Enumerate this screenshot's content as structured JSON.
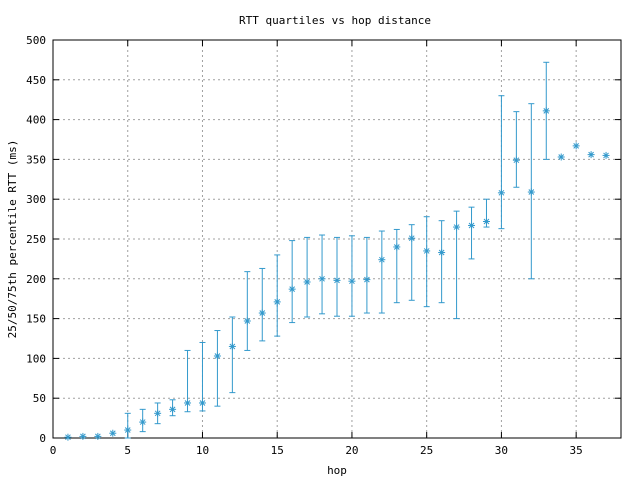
{
  "chart_data": {
    "type": "scatter",
    "title": "RTT quartiles vs hop distance",
    "xlabel": "hop",
    "ylabel": "25/50/75th percentile RTT (ms)",
    "xlim": [
      0,
      38
    ],
    "ylim": [
      0,
      500
    ],
    "xticks": [
      "0",
      "5",
      "10",
      "15",
      "20",
      "25",
      "30",
      "35"
    ],
    "yticks": [
      "0",
      "50",
      "100",
      "150",
      "200",
      "250",
      "300",
      "350",
      "400",
      "450",
      "500"
    ],
    "grid": true,
    "color": "#3399cc",
    "series": [
      {
        "points": [
          {
            "x": 1,
            "median": 1,
            "q25": 1,
            "q75": 1
          },
          {
            "x": 2,
            "median": 2,
            "q25": 2,
            "q75": 2
          },
          {
            "x": 3,
            "median": 2,
            "q25": 2,
            "q75": 2
          },
          {
            "x": 4,
            "median": 6,
            "q25": 6,
            "q75": 6
          },
          {
            "x": 5,
            "median": 10,
            "q25": 0,
            "q75": 31
          },
          {
            "x": 6,
            "median": 20,
            "q25": 8,
            "q75": 36
          },
          {
            "x": 7,
            "median": 31,
            "q25": 18,
            "q75": 44
          },
          {
            "x": 8,
            "median": 36,
            "q25": 28,
            "q75": 48
          },
          {
            "x": 9,
            "median": 44,
            "q25": 33,
            "q75": 110
          },
          {
            "x": 10,
            "median": 44,
            "q25": 34,
            "q75": 120
          },
          {
            "x": 11,
            "median": 103,
            "q25": 40,
            "q75": 135
          },
          {
            "x": 12,
            "median": 115,
            "q25": 57,
            "q75": 152
          },
          {
            "x": 13,
            "median": 147,
            "q25": 110,
            "q75": 209
          },
          {
            "x": 14,
            "median": 157,
            "q25": 122,
            "q75": 213
          },
          {
            "x": 15,
            "median": 171,
            "q25": 128,
            "q75": 230
          },
          {
            "x": 16,
            "median": 187,
            "q25": 145,
            "q75": 248
          },
          {
            "x": 17,
            "median": 196,
            "q25": 152,
            "q75": 252
          },
          {
            "x": 18,
            "median": 200,
            "q25": 156,
            "q75": 255
          },
          {
            "x": 19,
            "median": 198,
            "q25": 153,
            "q75": 252
          },
          {
            "x": 20,
            "median": 197,
            "q25": 153,
            "q75": 254
          },
          {
            "x": 21,
            "median": 199,
            "q25": 157,
            "q75": 252
          },
          {
            "x": 22,
            "median": 224,
            "q25": 157,
            "q75": 260
          },
          {
            "x": 23,
            "median": 240,
            "q25": 170,
            "q75": 262
          },
          {
            "x": 24,
            "median": 251,
            "q25": 173,
            "q75": 268
          },
          {
            "x": 25,
            "median": 235,
            "q25": 165,
            "q75": 278
          },
          {
            "x": 26,
            "median": 233,
            "q25": 170,
            "q75": 273
          },
          {
            "x": 27,
            "median": 265,
            "q25": 150,
            "q75": 285
          },
          {
            "x": 28,
            "median": 267,
            "q25": 225,
            "q75": 290
          },
          {
            "x": 29,
            "median": 272,
            "q25": 265,
            "q75": 300
          },
          {
            "x": 30,
            "median": 308,
            "q25": 263,
            "q75": 430
          },
          {
            "x": 31,
            "median": 349,
            "q25": 315,
            "q75": 410
          },
          {
            "x": 32,
            "median": 309,
            "q25": 200,
            "q75": 420
          },
          {
            "x": 33,
            "median": 411,
            "q25": 350,
            "q75": 472
          },
          {
            "x": 34,
            "median": 353,
            "q25": 353,
            "q75": 353
          },
          {
            "x": 35,
            "median": 367,
            "q25": 367,
            "q75": 367
          },
          {
            "x": 36,
            "median": 356,
            "q25": 356,
            "q75": 356
          },
          {
            "x": 37,
            "median": 355,
            "q25": 355,
            "q75": 355
          }
        ]
      }
    ]
  }
}
